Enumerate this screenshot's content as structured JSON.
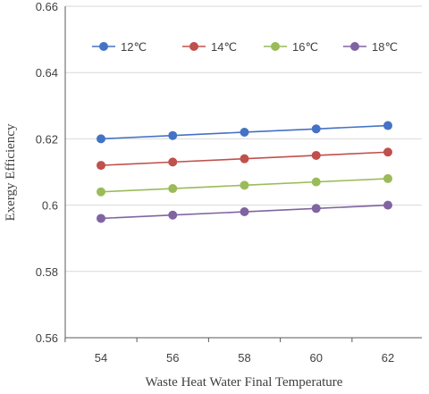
{
  "chart_data": {
    "type": "line",
    "title": "",
    "xlabel": "Waste Heat Water Final Temperature",
    "ylabel": "Exergy Efficiency",
    "x": [
      54,
      56,
      58,
      60,
      62
    ],
    "x_tick_labels": [
      "54",
      "56",
      "58",
      "60",
      "62"
    ],
    "y_tick_labels": [
      "0.56",
      "0.58",
      "0.6",
      "0.62",
      "0.64",
      "0.66"
    ],
    "ylim": [
      0.56,
      0.66
    ],
    "y_ticks": [
      0.56,
      0.58,
      0.6,
      0.62,
      0.64,
      0.66
    ],
    "grid": "horizontal",
    "legend_position": "top",
    "series": [
      {
        "name": "12℃",
        "color": "#4472C4",
        "values": [
          0.62,
          0.621,
          0.622,
          0.623,
          0.624
        ]
      },
      {
        "name": "14℃",
        "color": "#C0504D",
        "values": [
          0.612,
          0.613,
          0.614,
          0.615,
          0.616
        ]
      },
      {
        "name": "16℃",
        "color": "#9BBB59",
        "values": [
          0.604,
          0.605,
          0.606,
          0.607,
          0.608
        ]
      },
      {
        "name": "18℃",
        "color": "#8064A2",
        "values": [
          0.596,
          0.597,
          0.598,
          0.599,
          0.6
        ]
      }
    ]
  }
}
